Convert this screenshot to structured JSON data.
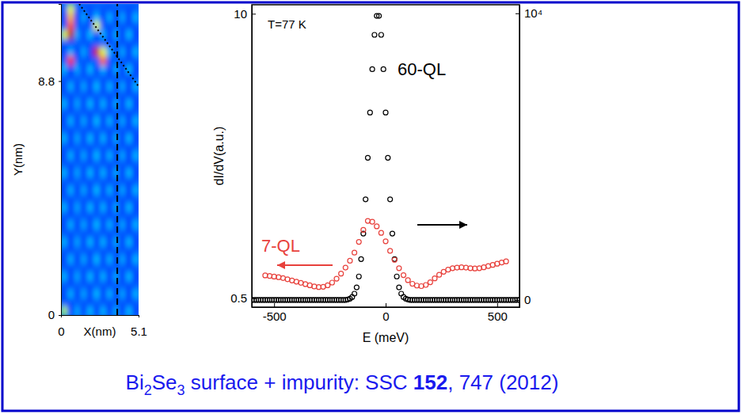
{
  "chart_data": [
    {
      "type": "heatmap",
      "xlabel": "X(nm)",
      "ylabel": "Y(nm)",
      "xlim": [
        0,
        5.1
      ],
      "ylim": [
        0,
        11.7
      ],
      "xticks": [
        0,
        5.1
      ],
      "yticks": [
        0,
        8.8
      ],
      "cell_range": [
        0,
        1
      ],
      "cells": [
        [
          0.55,
          0.17,
          0.29,
          0.18,
          0.31,
          0.17,
          0.3,
          0.18,
          0.29,
          0.17,
          0.31,
          0.18
        ],
        [
          0.21,
          0.2,
          0.22,
          0.21,
          0.2,
          0.22,
          0.21,
          0.2,
          0.22,
          0.21,
          0.2,
          0.21
        ],
        [
          0.18,
          0.3,
          0.17,
          0.29,
          0.18,
          0.31,
          0.17,
          0.3,
          0.18,
          0.29,
          0.17,
          0.3
        ],
        [
          0.21,
          0.2,
          0.22,
          0.21,
          0.2,
          0.22,
          0.21,
          0.2,
          0.22,
          0.21,
          0.2,
          0.21
        ],
        [
          0.3,
          0.17,
          0.29,
          0.18,
          0.31,
          0.17,
          0.3,
          0.18,
          0.29,
          0.17,
          0.31,
          0.18
        ],
        [
          0.21,
          0.2,
          0.22,
          0.21,
          0.2,
          0.22,
          0.21,
          0.2,
          0.22,
          0.21,
          0.2,
          0.21
        ],
        [
          0.18,
          0.3,
          0.17,
          0.29,
          0.18,
          0.31,
          0.17,
          0.3,
          0.18,
          0.29,
          0.17,
          0.3
        ],
        [
          0.21,
          0.2,
          0.22,
          0.21,
          0.2,
          0.22,
          0.21,
          0.2,
          0.22,
          0.21,
          0.2,
          0.21
        ],
        [
          0.3,
          0.17,
          0.29,
          0.18,
          0.31,
          0.17,
          0.3,
          0.18,
          0.29,
          0.17,
          0.31,
          0.18
        ],
        [
          0.21,
          0.2,
          0.22,
          0.21,
          0.2,
          0.22,
          0.21,
          0.2,
          0.22,
          0.21,
          0.2,
          0.21
        ],
        [
          0.18,
          0.3,
          0.17,
          0.29,
          0.18,
          0.31,
          0.17,
          0.3,
          0.18,
          0.29,
          0.17,
          0.3
        ],
        [
          0.21,
          0.2,
          0.22,
          0.21,
          0.2,
          0.22,
          0.21,
          0.2,
          0.22,
          0.21,
          0.2,
          0.21
        ],
        [
          0.3,
          0.17,
          0.29,
          0.18,
          0.31,
          0.17,
          0.3,
          0.18,
          0.29,
          0.17,
          0.31,
          0.18
        ],
        [
          0.21,
          0.2,
          0.22,
          0.21,
          0.2,
          0.22,
          0.21,
          0.2,
          0.22,
          0.21,
          0.2,
          0.21
        ],
        [
          0.18,
          0.3,
          0.17,
          0.29,
          0.18,
          0.31,
          0.17,
          0.3,
          0.18,
          0.29,
          0.17,
          0.3
        ],
        [
          0.21,
          0.2,
          0.22,
          0.21,
          0.2,
          0.22,
          0.21,
          0.2,
          0.22,
          0.21,
          0.2,
          0.21
        ],
        [
          0.3,
          0.17,
          0.29,
          0.18,
          0.31,
          0.17,
          0.3,
          0.18,
          0.29,
          0.17,
          0.31,
          0.18
        ],
        [
          0.21,
          0.2,
          0.22,
          0.21,
          0.2,
          0.22,
          0.21,
          0.2,
          0.22,
          0.21,
          0.2,
          0.21
        ],
        [
          0.18,
          0.3,
          0.17,
          0.29,
          0.18,
          0.31,
          0.17,
          0.3,
          0.18,
          0.29,
          0.17,
          0.3
        ],
        [
          0.21,
          0.2,
          0.22,
          0.21,
          0.2,
          0.22,
          0.21,
          0.2,
          0.22,
          0.21,
          0.2,
          0.21
        ],
        [
          0.3,
          0.17,
          0.29,
          0.18,
          0.31,
          0.17,
          0.3,
          0.18,
          0.29,
          0.17,
          0.31,
          0.18
        ],
        [
          0.21,
          0.2,
          0.22,
          0.21,
          0.2,
          0.22,
          0.21,
          0.2,
          0.22,
          0.21,
          0.2,
          0.21
        ],
        [
          0.18,
          0.3,
          0.17,
          0.29,
          0.18,
          0.31,
          0.17,
          0.3,
          0.18,
          0.29,
          0.17,
          0.3
        ],
        [
          0.21,
          0.2,
          0.22,
          0.21,
          0.2,
          0.22,
          0.21,
          0.2,
          0.22,
          0.21,
          0.2,
          0.21
        ],
        [
          0.3,
          0.17,
          0.29,
          0.18,
          0.31,
          0.17,
          0.3,
          0.18,
          0.29,
          0.17,
          0.31,
          0.18
        ],
        [
          0.21,
          0.2,
          0.22,
          0.21,
          0.2,
          0.22,
          0.21,
          0.2,
          0.22,
          0.21,
          0.2,
          0.21
        ],
        [
          0.18,
          0.3,
          0.17,
          0.29,
          0.18,
          0.31,
          0.17,
          0.3,
          0.18,
          0.29,
          0.17,
          0.3
        ],
        [
          0.21,
          0.2,
          0.22,
          0.21,
          0.2,
          0.22,
          0.21,
          0.2,
          0.22,
          0.21,
          0.2,
          0.21
        ],
        [
          0.3,
          0.17,
          0.29,
          0.18,
          0.31,
          0.17,
          0.3,
          0.18,
          0.29,
          0.17,
          0.31,
          0.18
        ],
        [
          0.21,
          0.85,
          0.22,
          0.21,
          0.2,
          0.22,
          0.8,
          0.2,
          0.22,
          0.21,
          0.2,
          0.21
        ],
        [
          0.18,
          0.3,
          0.17,
          0.29,
          0.18,
          0.92,
          0.6,
          0.3,
          0.18,
          0.29,
          0.17,
          0.3
        ],
        [
          0.21,
          0.2,
          0.22,
          0.21,
          0.2,
          0.22,
          0.21,
          0.2,
          0.22,
          0.21,
          0.2,
          0.21
        ],
        [
          0.6,
          0.95,
          0.29,
          0.18,
          0.31,
          0.17,
          0.3,
          0.18,
          0.29,
          0.17,
          0.31,
          0.18
        ],
        [
          0.21,
          0.8,
          0.22,
          0.21,
          0.2,
          0.6,
          0.21,
          0.2,
          0.22,
          0.21,
          0.2,
          0.21
        ],
        [
          0.18,
          0.7,
          0.17,
          0.29,
          0.18,
          0.31,
          0.17,
          0.3,
          0.18,
          0.29,
          0.17,
          0.3
        ],
        [
          0.21,
          0.6,
          0.22,
          0.21,
          0.2,
          0.22,
          0.21,
          0.2,
          0.22,
          0.21,
          0.2,
          0.21
        ]
      ],
      "lines": [
        {
          "x": [
            3.7,
            3.7
          ],
          "y": [
            0,
            11.7
          ],
          "line_style": "dashed"
        },
        {
          "x": [
            1.2,
            5.1
          ],
          "y": [
            11.7,
            8.6
          ],
          "line_style": "dotted"
        }
      ]
    },
    {
      "type": "scatter",
      "xlabel": "E (meV)",
      "ylabel": "dI/dV(a.u.)",
      "xlim": [
        -600,
        600
      ],
      "xticks": [
        -500,
        0,
        500
      ],
      "ylim": [
        0.2,
        10.3
      ],
      "yticks": [
        0.5,
        10
      ],
      "y2lim": [
        -250,
        10300
      ],
      "y2ticks": [
        0,
        {
          "value": 10000,
          "label": "10⁴"
        }
      ],
      "annotations": [
        "T=77 K"
      ],
      "series": [
        {
          "name": "60-QL",
          "color": "#000000",
          "marker": "circle",
          "axis": "y2",
          "x": [
            -600,
            -590,
            -580,
            -570,
            -560,
            -550,
            -540,
            -530,
            -520,
            -510,
            -500,
            -490,
            -480,
            -470,
            -460,
            -450,
            -440,
            -430,
            -420,
            -410,
            -400,
            -390,
            -380,
            -370,
            -360,
            -350,
            -340,
            -330,
            -320,
            -310,
            -300,
            -290,
            -280,
            -270,
            -260,
            -250,
            -240,
            -230,
            -220,
            -210,
            -200,
            -190,
            -180,
            -170,
            -160,
            -150,
            -140,
            -130,
            -120,
            -110,
            -100,
            -90,
            -80,
            -70,
            -60,
            -50,
            -40,
            -30,
            -20,
            -10,
            0,
            10,
            20,
            30,
            40,
            50,
            60,
            70,
            80,
            90,
            100,
            110,
            120,
            130,
            140,
            150,
            160,
            170,
            180,
            190,
            200,
            210,
            220,
            230,
            240,
            250,
            260,
            270,
            280,
            290,
            300,
            310,
            320,
            330,
            340,
            350,
            360,
            370,
            380,
            390,
            400,
            410,
            420,
            430,
            440,
            450,
            460,
            470,
            480,
            490,
            500,
            510,
            520,
            530,
            540,
            550,
            560,
            570,
            580,
            590,
            600
          ],
          "values": [
            0,
            0,
            0,
            0,
            0,
            0,
            0,
            0,
            0,
            0,
            0,
            0,
            0,
            0,
            0,
            0,
            0,
            0,
            0,
            0,
            0,
            0,
            0,
            0,
            0,
            0,
            0,
            0,
            0,
            0,
            0,
            0,
            0,
            0,
            0,
            0,
            0,
            0,
            0,
            0,
            0,
            0,
            0,
            18,
            45,
            103,
            220,
            439,
            820,
            1426,
            2316,
            3510,
            4960,
            6540,
            8050,
            9250,
            9910,
            9910,
            9250,
            8050,
            6540,
            4960,
            3510,
            2316,
            1426,
            820,
            439,
            220,
            103,
            45,
            18,
            0,
            0,
            0,
            0,
            0,
            0,
            0,
            0,
            0,
            0,
            0,
            0,
            0,
            0,
            0,
            0,
            0,
            0,
            0,
            0,
            0,
            0,
            0,
            0,
            0,
            0,
            0,
            0,
            0,
            0,
            0,
            0,
            0,
            0,
            0,
            0,
            0,
            0,
            0,
            0,
            0,
            0,
            0,
            0,
            0,
            0,
            0,
            0,
            0,
            0
          ]
        },
        {
          "name": "7-QL",
          "color": "#e8413c",
          "marker": "circle",
          "x": [
            -540,
            -520,
            -500,
            -480,
            -460,
            -440,
            -420,
            -400,
            -380,
            -360,
            -340,
            -320,
            -300,
            -280,
            -260,
            -240,
            -220,
            -200,
            -180,
            -160,
            -140,
            -120,
            -100,
            -80,
            -60,
            -40,
            -20,
            0,
            20,
            40,
            60,
            80,
            100,
            120,
            140,
            160,
            180,
            200,
            220,
            240,
            260,
            280,
            300,
            320,
            340,
            360,
            380,
            400,
            420,
            440,
            460,
            480,
            500,
            520,
            540
          ],
          "values": [
            1.26,
            1.24,
            1.22,
            1.2,
            1.17,
            1.13,
            1.09,
            1.05,
            1.01,
            0.97,
            0.93,
            0.89,
            0.87,
            0.88,
            0.93,
            1.02,
            1.15,
            1.32,
            1.52,
            1.75,
            2.02,
            2.38,
            2.78,
            3.08,
            3.05,
            2.9,
            2.68,
            2.4,
            2.08,
            1.78,
            1.5,
            1.27,
            1.1,
            0.98,
            0.92,
            0.9,
            0.94,
            1.03,
            1.16,
            1.28,
            1.38,
            1.45,
            1.5,
            1.52,
            1.53,
            1.52,
            1.5,
            1.49,
            1.5,
            1.53,
            1.57,
            1.61,
            1.65,
            1.69,
            1.73
          ]
        }
      ]
    }
  ],
  "caption": [
    "Bi",
    "2",
    "Se",
    "3",
    " surface + impurity: SSC ",
    "152",
    ", 747 (2012)"
  ]
}
